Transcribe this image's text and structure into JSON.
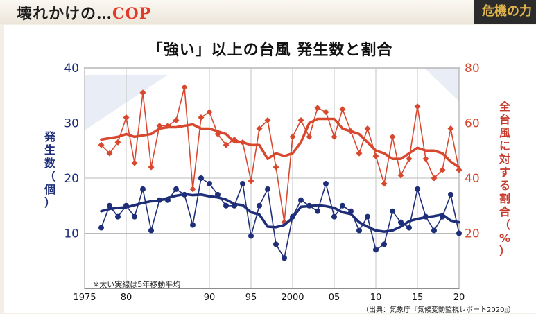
{
  "header": {
    "headline_main": "壊れかけの…",
    "headline_accent": "COP",
    "corner_text": "危機の力"
  },
  "colors": {
    "count_series": "#1e2e78",
    "ratio_series": "#d8482f",
    "title_accent": "#e23b2a"
  },
  "chart_data": {
    "type": "line",
    "title": "「強い」以上の台風 発生数と割合",
    "x_tick_labels": [
      "1975",
      "80",
      "90",
      "95",
      "2000",
      "05",
      "10",
      "15",
      "20"
    ],
    "x_ticks": [
      1975,
      1980,
      1990,
      1995,
      2000,
      2005,
      2010,
      2015,
      2020
    ],
    "xlim": [
      1975,
      2020
    ],
    "left_axis": {
      "label": "発生数（個）",
      "ylim": [
        0,
        40
      ],
      "ticks": [
        10,
        20,
        30,
        40
      ]
    },
    "right_axis": {
      "label": "全台風に対する割合（%）",
      "ylim": [
        0,
        80
      ],
      "ticks": [
        20,
        40,
        60,
        80
      ]
    },
    "x": [
      1977,
      1978,
      1979,
      1980,
      1981,
      1982,
      1983,
      1984,
      1985,
      1986,
      1987,
      1988,
      1989,
      1990,
      1991,
      1992,
      1993,
      1994,
      1995,
      1996,
      1997,
      1998,
      1999,
      2000,
      2001,
      2002,
      2003,
      2004,
      2005,
      2006,
      2007,
      2008,
      2009,
      2010,
      2011,
      2012,
      2013,
      2014,
      2015,
      2016,
      2017,
      2018,
      2019,
      2020
    ],
    "series": [
      {
        "axis": "left",
        "values": [
          11,
          15,
          13,
          15,
          13,
          18,
          10.5,
          16,
          16,
          18,
          17,
          11.5,
          20,
          19,
          17,
          15,
          15,
          19,
          9.5,
          15,
          18,
          8,
          5.5,
          13,
          16,
          15,
          14,
          19,
          13,
          15,
          14,
          10.5,
          13,
          7,
          8,
          14,
          12,
          11,
          18,
          13,
          10.5,
          13,
          17,
          10
        ]
      },
      {
        "axis": "left",
        "moving_average": true,
        "values": [
          14,
          14.4,
          14.6,
          14.7,
          15.1,
          15.5,
          15.8,
          15.9,
          16.4,
          16.8,
          17.1,
          16.9,
          17,
          16.7,
          16.5,
          16.1,
          15.3,
          15.1,
          13.8,
          13.4,
          11.2,
          11.1,
          11.5,
          12.8,
          14.8,
          14.9,
          15.1,
          14.9,
          14.6,
          13.8,
          13.5,
          12,
          11.2,
          10.5,
          10.3,
          10.5,
          11.2,
          12.2,
          12.6,
          12.9,
          13.1,
          13.4,
          12.3,
          12
        ]
      },
      {
        "axis": "right",
        "values": [
          52,
          49,
          53,
          62,
          45.5,
          71,
          44,
          59,
          59,
          61,
          73,
          36,
          62,
          64,
          56,
          52,
          54,
          53,
          39,
          58,
          61,
          44,
          24,
          55,
          61,
          55,
          65.5,
          64,
          55,
          65,
          57,
          49,
          58,
          48,
          38,
          55,
          41,
          47,
          66,
          47,
          40,
          43,
          58,
          43
        ]
      },
      {
        "axis": "right",
        "moving_average": true,
        "values": [
          54,
          54.5,
          55,
          56,
          55,
          55.5,
          56,
          58,
          58.5,
          58.5,
          59,
          59.5,
          58,
          58,
          57,
          56,
          53,
          53,
          52,
          52,
          47,
          49,
          48,
          49,
          53,
          60,
          61.5,
          61.5,
          61.5,
          58,
          57,
          56,
          53,
          50,
          49,
          47,
          47,
          49,
          51,
          50,
          50,
          49,
          46,
          44
        ]
      }
    ],
    "note": "※太い実線は5年移動平均",
    "source": "（出典：気象庁『気候変動監視レポート2020』）"
  }
}
